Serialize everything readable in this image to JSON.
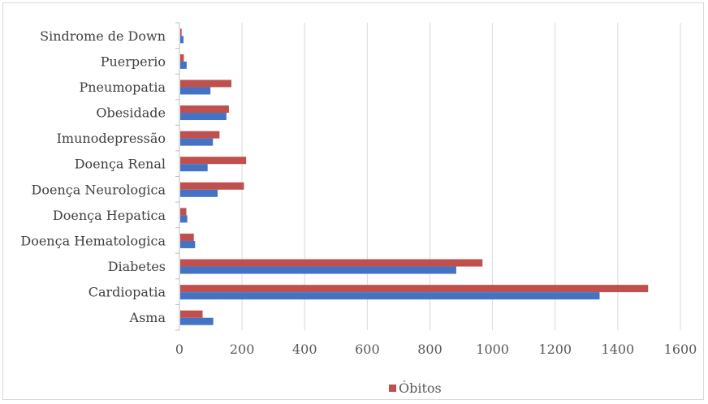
{
  "chart_data": {
    "type": "bar",
    "orientation": "horizontal",
    "categories": [
      "Asma",
      "Cardiopatia",
      "Diabetes",
      "Doença Hematologica",
      "Doença Hepatica",
      "Doença Neurologica",
      "Doença Renal",
      "Imunodepressão",
      "Obesidade",
      "Pneumopatia",
      "Puerperio",
      "Sindrome de Down"
    ],
    "series": [
      {
        "name": "",
        "color": "#4472c4",
        "values": [
          108,
          1342,
          884,
          50,
          25,
          122,
          90,
          107,
          150,
          99,
          23,
          13
        ]
      },
      {
        "name": "Óbitos",
        "color": "#c0504d",
        "values": [
          74,
          1497,
          968,
          46,
          22,
          206,
          213,
          128,
          158,
          166,
          14,
          7
        ]
      }
    ],
    "xlim": [
      0,
      1600
    ],
    "xticks": [
      0,
      200,
      400,
      600,
      800,
      1000,
      1200,
      1400,
      1600
    ],
    "grid": true,
    "legend_position": "bottom",
    "legend_entries": [
      "Óbitos"
    ]
  }
}
